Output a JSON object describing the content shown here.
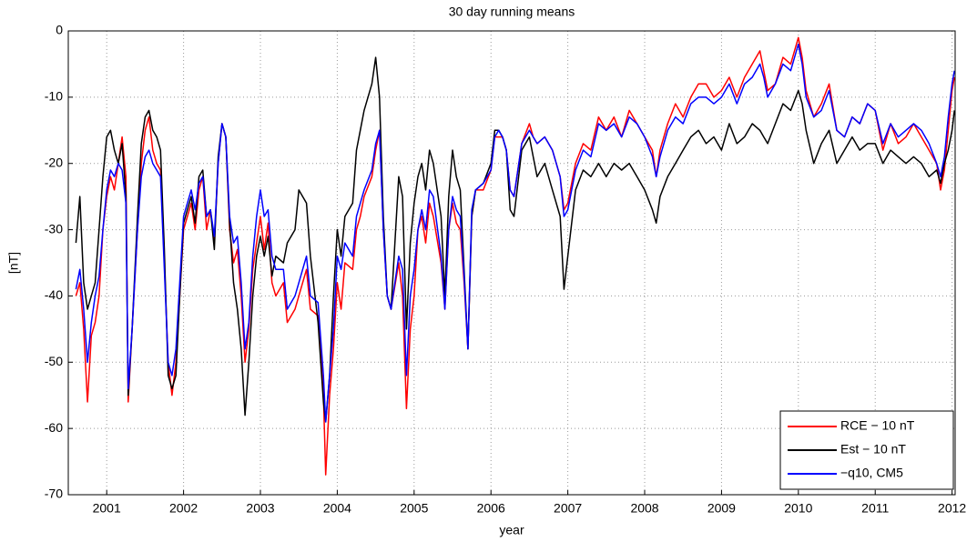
{
  "chart_data": {
    "type": "line",
    "title": "30 day running means",
    "xlabel": "year",
    "ylabel": "[nT]",
    "x": [
      2000.6,
      2000.65,
      2000.7,
      2000.75,
      2000.8,
      2000.85,
      2000.9,
      2000.95,
      2001.0,
      2001.05,
      2001.1,
      2001.15,
      2001.2,
      2001.25,
      2001.28,
      2001.33,
      2001.4,
      2001.45,
      2001.5,
      2001.55,
      2001.6,
      2001.65,
      2001.7,
      2001.75,
      2001.8,
      2001.85,
      2001.9,
      2001.95,
      2002.0,
      2002.05,
      2002.1,
      2002.15,
      2002.2,
      2002.25,
      2002.3,
      2002.35,
      2002.4,
      2002.45,
      2002.5,
      2002.55,
      2002.6,
      2002.65,
      2002.7,
      2002.75,
      2002.8,
      2002.85,
      2002.9,
      2002.95,
      2003.0,
      2003.05,
      2003.1,
      2003.15,
      2003.2,
      2003.3,
      2003.35,
      2003.45,
      2003.5,
      2003.6,
      2003.65,
      2003.75,
      2003.82,
      2003.85,
      2003.9,
      2003.95,
      2004.0,
      2004.05,
      2004.1,
      2004.2,
      2004.25,
      2004.3,
      2004.35,
      2004.45,
      2004.5,
      2004.55,
      2004.6,
      2004.65,
      2004.7,
      2004.8,
      2004.85,
      2004.9,
      2004.95,
      2005.0,
      2005.05,
      2005.1,
      2005.15,
      2005.2,
      2005.25,
      2005.35,
      2005.4,
      2005.45,
      2005.5,
      2005.55,
      2005.6,
      2005.65,
      2005.7,
      2005.75,
      2005.8,
      2005.9,
      2006.0,
      2006.05,
      2006.1,
      2006.15,
      2006.2,
      2006.25,
      2006.3,
      2006.4,
      2006.5,
      2006.55,
      2006.6,
      2006.7,
      2006.8,
      2006.9,
      2006.95,
      2007.0,
      2007.1,
      2007.2,
      2007.3,
      2007.4,
      2007.5,
      2007.6,
      2007.7,
      2007.8,
      2007.9,
      2008.0,
      2008.1,
      2008.15,
      2008.2,
      2008.3,
      2008.4,
      2008.5,
      2008.6,
      2008.7,
      2008.8,
      2008.9,
      2009.0,
      2009.1,
      2009.2,
      2009.3,
      2009.4,
      2009.5,
      2009.55,
      2009.6,
      2009.7,
      2009.8,
      2009.9,
      2010.0,
      2010.05,
      2010.1,
      2010.2,
      2010.3,
      2010.4,
      2010.5,
      2010.6,
      2010.7,
      2010.8,
      2010.9,
      2011.0,
      2011.1,
      2011.2,
      2011.3,
      2011.4,
      2011.5,
      2011.6,
      2011.7,
      2011.8,
      2011.85,
      2011.9,
      2011.95,
      2012.0,
      2012.03
    ],
    "series": [
      {
        "name": "RCE − 10 nT",
        "color": "#ff0000",
        "values": [
          -40,
          -38,
          -45,
          -56,
          -46,
          -44,
          -40,
          -30,
          -25,
          -22,
          -24,
          -20,
          -16,
          -22,
          -56,
          -45,
          -30,
          -20,
          -15,
          -13,
          -18,
          -20,
          -21,
          -35,
          -50,
          -55,
          -50,
          -40,
          -30,
          -28,
          -26,
          -30,
          -24,
          -22,
          -30,
          -27,
          -32,
          -20,
          -14,
          -16,
          -30,
          -35,
          -33,
          -40,
          -50,
          -45,
          -36,
          -32,
          -28,
          -33,
          -29,
          -38,
          -40,
          -38,
          -44,
          -42,
          -40,
          -36,
          -42,
          -43,
          -55,
          -67,
          -55,
          -48,
          -38,
          -42,
          -35,
          -36,
          -30,
          -28,
          -25,
          -22,
          -18,
          -15,
          -30,
          -40,
          -42,
          -35,
          -40,
          -57,
          -45,
          -40,
          -30,
          -28,
          -32,
          -26,
          -28,
          -35,
          -42,
          -30,
          -26,
          -29,
          -30,
          -38,
          -48,
          -28,
          -24,
          -24,
          -21,
          -16,
          -16,
          -16,
          -18,
          -24,
          -25,
          -17,
          -14,
          -16,
          -17,
          -16,
          -18,
          -22,
          -27,
          -26,
          -20,
          -17,
          -18,
          -13,
          -15,
          -13,
          -16,
          -12,
          -14,
          -16,
          -18,
          -22,
          -18,
          -14,
          -11,
          -13,
          -10,
          -8,
          -8,
          -10,
          -9,
          -7,
          -10,
          -7,
          -5,
          -3,
          -6,
          -9,
          -8,
          -4,
          -5,
          -1,
          -4,
          -9,
          -13,
          -11,
          -8,
          -15,
          -16,
          -13,
          -14,
          -11,
          -12,
          -18,
          -14,
          -17,
          -16,
          -14,
          -16,
          -18,
          -20,
          -24,
          -21,
          -15,
          -9,
          -7
        ]
      },
      {
        "name": "Est − 10 nT",
        "color": "#000000",
        "values": [
          -32,
          -25,
          -38,
          -42,
          -40,
          -38,
          -30,
          -22,
          -16,
          -15,
          -18,
          -20,
          -17,
          -25,
          -55,
          -45,
          -28,
          -17,
          -13,
          -12,
          -15,
          -16,
          -18,
          -33,
          -52,
          -54,
          -52,
          -40,
          -29,
          -27,
          -25,
          -29,
          -22,
          -21,
          -28,
          -27,
          -33,
          -19,
          -14,
          -16,
          -29,
          -38,
          -42,
          -48,
          -58,
          -50,
          -40,
          -34,
          -31,
          -34,
          -31,
          -37,
          -34,
          -35,
          -32,
          -30,
          -24,
          -26,
          -34,
          -44,
          -56,
          -59,
          -52,
          -40,
          -30,
          -34,
          -28,
          -26,
          -18,
          -15,
          -12,
          -8,
          -4,
          -10,
          -28,
          -40,
          -42,
          -22,
          -25,
          -45,
          -32,
          -26,
          -22,
          -20,
          -24,
          -18,
          -20,
          -28,
          -40,
          -25,
          -18,
          -22,
          -24,
          -36,
          -48,
          -28,
          -24,
          -23,
          -20,
          -15,
          -15,
          -16,
          -18,
          -27,
          -28,
          -18,
          -16,
          -19,
          -22,
          -20,
          -24,
          -28,
          -39,
          -34,
          -24,
          -21,
          -22,
          -20,
          -22,
          -20,
          -21,
          -20,
          -22,
          -24,
          -27,
          -29,
          -25,
          -22,
          -20,
          -18,
          -16,
          -15,
          -17,
          -16,
          -18,
          -14,
          -17,
          -16,
          -14,
          -15,
          -16,
          -17,
          -14,
          -11,
          -12,
          -9,
          -11,
          -15,
          -20,
          -17,
          -15,
          -20,
          -18,
          -16,
          -18,
          -17,
          -17,
          -20,
          -18,
          -19,
          -20,
          -19,
          -20,
          -22,
          -21,
          -23,
          -20,
          -18,
          -15,
          -12
        ]
      },
      {
        "name": "−q10, CM5",
        "color": "#0000ff",
        "values": [
          -39,
          -36,
          -42,
          -50,
          -44,
          -40,
          -37,
          -30,
          -24,
          -21,
          -22,
          -20,
          -21,
          -26,
          -54,
          -45,
          -30,
          -22,
          -19,
          -18,
          -20,
          -21,
          -22,
          -36,
          -50,
          -52,
          -48,
          -38,
          -28,
          -26,
          -24,
          -27,
          -23,
          -22,
          -28,
          -27,
          -31,
          -20,
          -14,
          -16,
          -28,
          -32,
          -31,
          -38,
          -48,
          -44,
          -34,
          -28,
          -24,
          -28,
          -27,
          -34,
          -36,
          -36,
          -42,
          -40,
          -38,
          -34,
          -40,
          -41,
          -52,
          -59,
          -52,
          -45,
          -34,
          -36,
          -32,
          -34,
          -28,
          -26,
          -24,
          -21,
          -17,
          -15,
          -30,
          -40,
          -42,
          -34,
          -36,
          -52,
          -40,
          -36,
          -30,
          -27,
          -30,
          -24,
          -25,
          -34,
          -42,
          -30,
          -25,
          -27,
          -28,
          -37,
          -48,
          -27,
          -24,
          -23,
          -21,
          -16,
          -15,
          -16,
          -18,
          -24,
          -25,
          -17,
          -15,
          -16,
          -17,
          -16,
          -18,
          -22,
          -28,
          -27,
          -21,
          -18,
          -19,
          -14,
          -15,
          -14,
          -16,
          -13,
          -14,
          -16,
          -19,
          -22,
          -19,
          -15,
          -13,
          -14,
          -11,
          -10,
          -10,
          -11,
          -10,
          -8,
          -11,
          -8,
          -7,
          -5,
          -7,
          -10,
          -8,
          -5,
          -6,
          -2,
          -5,
          -10,
          -13,
          -12,
          -9,
          -15,
          -16,
          -13,
          -14,
          -11,
          -12,
          -17,
          -14,
          -16,
          -15,
          -14,
          -15,
          -17,
          -20,
          -22,
          -19,
          -13,
          -8,
          -6
        ]
      }
    ],
    "xlim": [
      2000.5,
      2012.04
    ],
    "ylim": [
      -70,
      0
    ],
    "xticks": [
      2001,
      2002,
      2003,
      2004,
      2005,
      2006,
      2007,
      2008,
      2009,
      2010,
      2011,
      2012
    ],
    "yticks": [
      -70,
      -60,
      -50,
      -40,
      -30,
      -20,
      -10,
      0
    ],
    "grid": true,
    "legend": "lower right"
  }
}
